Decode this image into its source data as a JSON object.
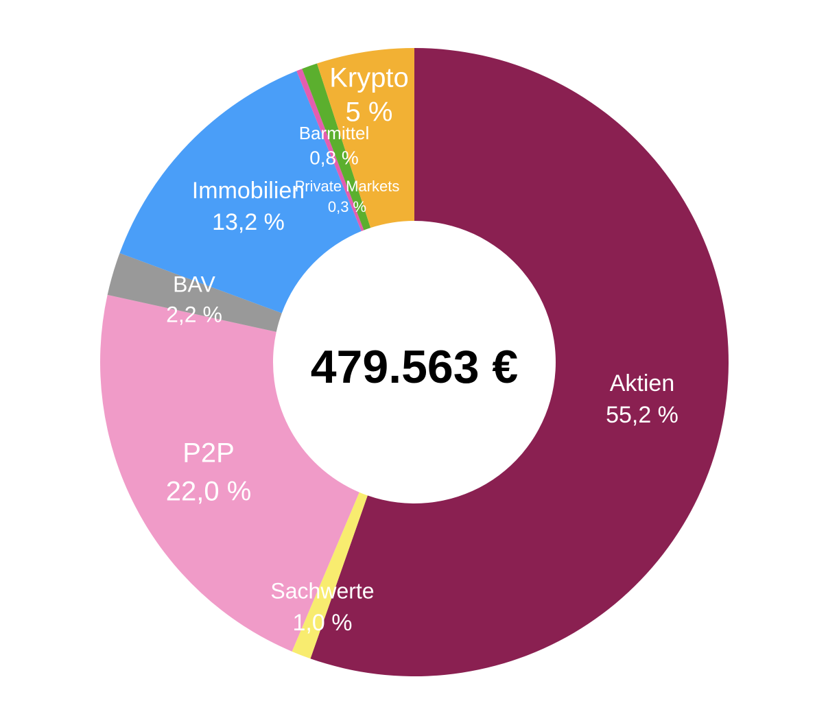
{
  "chart_data": {
    "type": "pie",
    "donut": true,
    "center_text": "479.563 €",
    "slices": [
      {
        "label": "Aktien",
        "value_text": "55,2 %",
        "value": 55.2,
        "color": "#8A2051"
      },
      {
        "label": "Sachwerte",
        "value_text": "1,0 %",
        "value": 1.0,
        "color": "#F8EC6F"
      },
      {
        "label": "P2P",
        "value_text": "22,0 %",
        "value": 22.0,
        "color": "#F09BC8"
      },
      {
        "label": "BAV",
        "value_text": "2,2 %",
        "value": 2.2,
        "color": "#999999"
      },
      {
        "label": "Immobilien",
        "value_text": "13,2 %",
        "value": 13.2,
        "color": "#4A9EF8"
      },
      {
        "label": "Private Markets",
        "value_text": "0,3 %",
        "value": 0.3,
        "color": "#E45DAF"
      },
      {
        "label": "Barmittel",
        "value_text": "0,8 %",
        "value": 0.8,
        "color": "#5BAF2E"
      },
      {
        "label": "Krypto",
        "value_text": "5 %",
        "value": 5.0,
        "color": "#F2B134"
      }
    ]
  }
}
